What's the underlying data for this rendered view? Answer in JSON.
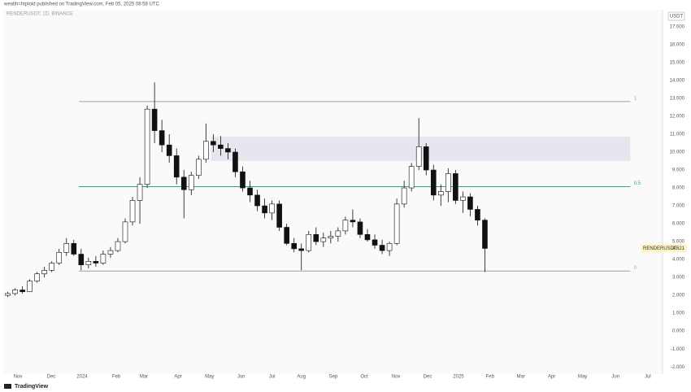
{
  "header": {
    "published": "wealth=htploid published on TradingView.com, Feb 05, 2025 08:58 UTC",
    "symbol": "RENDERUSDT, 1D, BINANCE",
    "brand": "TradingView"
  },
  "chart_data": {
    "type": "candlestick",
    "currency": "USDT",
    "open": [
      2.0,
      2.1,
      2.3,
      2.2,
      2.8,
      3.2,
      3.4,
      3.8,
      4.4,
      4.9,
      4.3,
      3.7,
      3.9,
      3.8,
      4.3,
      4.5,
      5.0,
      6.1,
      7.3,
      8.2,
      12.4,
      11.2,
      10.4,
      9.8,
      8.6,
      7.9,
      8.7,
      9.6,
      10.6,
      10.4,
      10.2,
      10.0,
      8.9,
      8.0,
      7.6,
      7.0,
      6.6,
      7.1,
      5.8,
      4.9,
      4.6,
      4.5,
      5.4,
      5.0,
      5.2,
      5.3,
      5.6,
      6.2,
      6.1,
      5.4,
      5.1,
      4.8,
      4.5,
      4.9,
      7.1,
      8.0,
      9.2,
      10.3,
      9.0,
      7.6,
      7.8,
      8.8,
      7.3,
      7.5,
      6.8,
      6.2
    ],
    "high": [
      2.2,
      2.4,
      2.5,
      2.9,
      3.3,
      3.6,
      3.9,
      4.6,
      5.2,
      5.1,
      4.6,
      4.1,
      4.2,
      4.5,
      4.7,
      5.2,
      6.3,
      7.5,
      8.6,
      12.6,
      13.9,
      11.8,
      11.0,
      10.2,
      9.0,
      8.9,
      9.8,
      11.6,
      11.0,
      10.9,
      10.5,
      10.2,
      9.2,
      8.4,
      7.9,
      7.4,
      7.3,
      7.3,
      6.0,
      5.2,
      4.9,
      5.6,
      5.8,
      5.5,
      5.6,
      5.8,
      6.4,
      6.8,
      6.3,
      5.7,
      5.4,
      5.1,
      5.0,
      7.4,
      8.4,
      9.4,
      11.9,
      10.5,
      9.3,
      8.2,
      9.1,
      9.0,
      7.8,
      7.7,
      7.0,
      6.3
    ],
    "low": [
      1.9,
      2.0,
      2.1,
      2.2,
      2.7,
      3.0,
      3.3,
      3.7,
      4.2,
      4.2,
      3.4,
      3.5,
      3.6,
      3.7,
      4.1,
      4.4,
      4.9,
      5.9,
      6.0,
      8.0,
      10.5,
      10.0,
      9.4,
      8.2,
      6.3,
      7.6,
      8.5,
      9.4,
      10.0,
      9.8,
      9.6,
      8.6,
      7.8,
      7.2,
      6.7,
      6.3,
      6.2,
      5.6,
      4.8,
      4.4,
      3.4,
      4.4,
      4.8,
      4.7,
      4.9,
      5.0,
      5.4,
      5.8,
      5.2,
      5.0,
      4.6,
      4.3,
      4.2,
      4.8,
      6.9,
      7.8,
      9.0,
      8.7,
      7.3,
      7.0,
      7.2,
      7.1,
      6.6,
      6.4,
      5.9,
      3.3
    ],
    "close": [
      2.1,
      2.3,
      2.2,
      2.8,
      3.2,
      3.4,
      3.8,
      4.4,
      4.9,
      4.3,
      3.7,
      3.9,
      3.8,
      4.3,
      4.5,
      5.0,
      6.1,
      7.3,
      8.2,
      12.4,
      11.2,
      10.4,
      9.8,
      8.6,
      7.9,
      8.7,
      9.6,
      10.6,
      10.4,
      10.2,
      10.0,
      8.9,
      8.0,
      7.6,
      7.0,
      6.6,
      7.1,
      5.8,
      4.9,
      4.6,
      4.5,
      5.4,
      5.0,
      5.2,
      5.3,
      5.6,
      6.2,
      6.1,
      5.4,
      5.1,
      4.8,
      4.5,
      4.9,
      7.1,
      8.0,
      9.2,
      10.3,
      9.0,
      7.6,
      7.8,
      8.8,
      7.3,
      7.5,
      6.8,
      6.2,
      4.621
    ],
    "up_color": "#ffffff",
    "down_color": "#111111",
    "xlim": [
      0,
      89.7
    ],
    "xticks": [
      {
        "value": 1.88,
        "label": "Nov"
      },
      {
        "value": 6.42,
        "label": "Dec"
      },
      {
        "value": 10.63,
        "label": "2024"
      },
      {
        "value": 15.28,
        "label": "Feb"
      },
      {
        "value": 19.05,
        "label": "Mar"
      },
      {
        "value": 23.7,
        "label": "Apr"
      },
      {
        "value": 28.0,
        "label": "May"
      },
      {
        "value": 32.3,
        "label": "Jun"
      },
      {
        "value": 36.5,
        "label": "Jul"
      },
      {
        "value": 40.5,
        "label": "Aug"
      },
      {
        "value": 44.85,
        "label": "Sep"
      },
      {
        "value": 49.06,
        "label": "Oct"
      },
      {
        "value": 53.4,
        "label": "Nov"
      },
      {
        "value": 57.7,
        "label": "Dec"
      },
      {
        "value": 61.9,
        "label": "2025"
      },
      {
        "value": 66.2,
        "label": "Feb"
      },
      {
        "value": 70.4,
        "label": "Mar"
      },
      {
        "value": 74.6,
        "label": "Apr"
      },
      {
        "value": 78.8,
        "label": "May"
      },
      {
        "value": 83.3,
        "label": "Jun"
      },
      {
        "value": 87.7,
        "label": "Jul"
      }
    ],
    "ylim": [
      -2.4,
      17.95
    ],
    "yticks": [
      {
        "value": 17,
        "label": "17.000"
      },
      {
        "value": 16,
        "label": "16.000"
      },
      {
        "value": 15,
        "label": "15.000"
      },
      {
        "value": 14,
        "label": "14.000"
      },
      {
        "value": 13,
        "label": "13.000"
      },
      {
        "value": 12,
        "label": "12.000"
      },
      {
        "value": 11,
        "label": "11.000"
      },
      {
        "value": 10,
        "label": "10.000"
      },
      {
        "value": 9,
        "label": "9.000"
      },
      {
        "value": 8,
        "label": "8.000"
      },
      {
        "value": 7,
        "label": "7.000"
      },
      {
        "value": 6,
        "label": "6.000"
      },
      {
        "value": 5,
        "label": "5.000"
      },
      {
        "value": 4,
        "label": "4.000"
      },
      {
        "value": 3,
        "label": "3.000"
      },
      {
        "value": 2,
        "label": "2.000"
      },
      {
        "value": 1,
        "label": "1.000"
      },
      {
        "value": 0,
        "label": "0.000"
      },
      {
        "value": -1,
        "label": "-1.000"
      },
      {
        "value": -2,
        "label": "-2.000"
      }
    ],
    "fib_levels": [
      {
        "ratio": 1,
        "price": 12.82,
        "color": "#9e9e9e"
      },
      {
        "ratio": 0.5,
        "price": 8.07,
        "color": "#26a69a"
      },
      {
        "ratio": 0,
        "price": 3.36,
        "color": "#9e9e9e"
      }
    ],
    "zone": {
      "low": 9.5,
      "high": 10.86,
      "color": "#e6e6ee"
    },
    "last_price": {
      "symbol": "RENDERUSDT",
      "value": 4.621
    }
  }
}
